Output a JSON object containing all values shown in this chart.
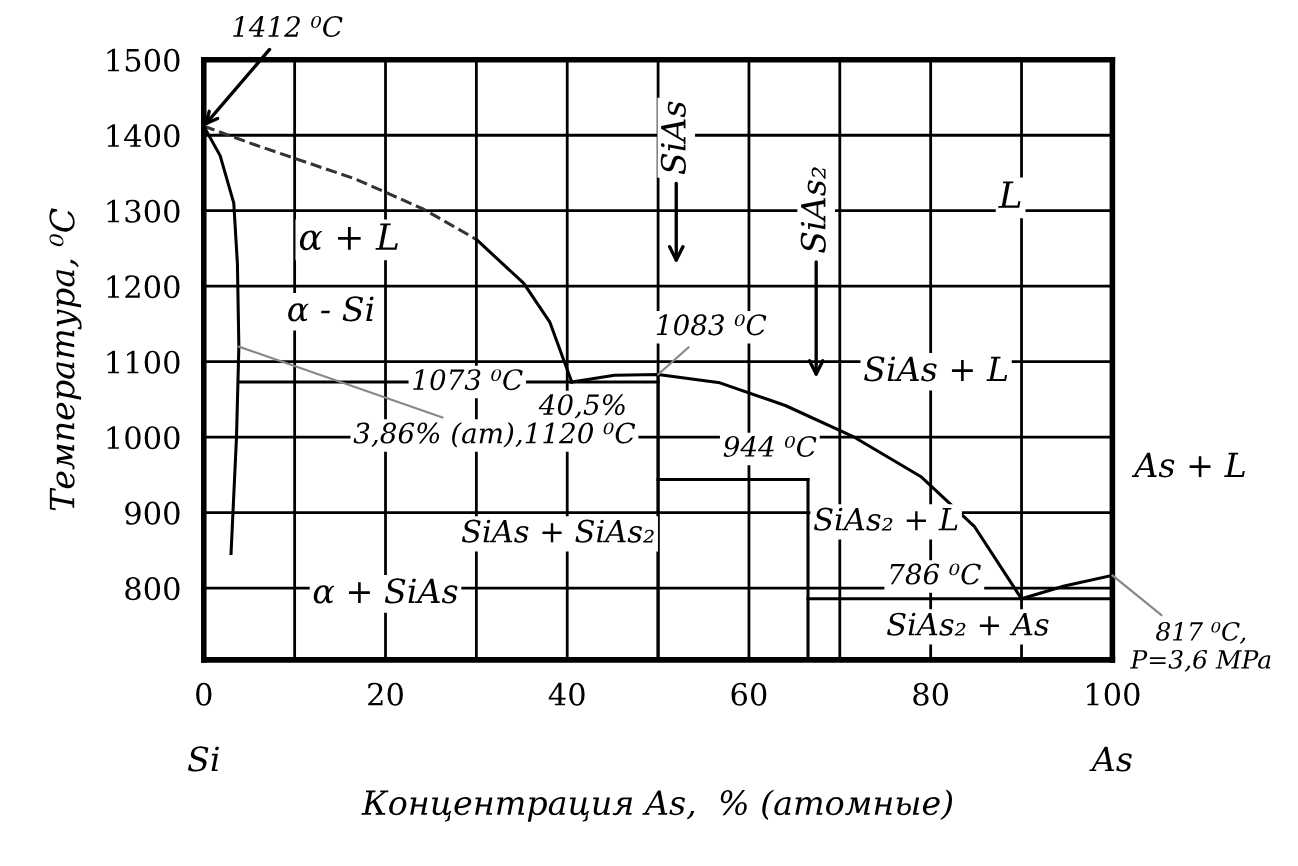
{
  "chart_data": {
    "type": "line",
    "xlabel": "Концентрация As,  % (атомные)",
    "ylabel": "Температура, ⁰C",
    "xlim": [
      0,
      100
    ],
    "ylim": [
      705,
      1500
    ],
    "xticks": [
      0,
      {
        "value": 10,
        "label": null
      },
      20,
      {
        "value": 30,
        "label": null
      },
      40,
      {
        "value": 50,
        "label": null
      },
      60,
      {
        "value": 70,
        "label": null
      },
      80,
      {
        "value": 90,
        "label": null
      },
      100
    ],
    "yticks": [
      800,
      900,
      1000,
      1100,
      1200,
      1300,
      1400,
      1500
    ],
    "grid": true,
    "marker": "none",
    "series": [
      {
        "color": "#333333",
        "line_style": "dashed",
        "x": [
          0,
          5.7,
          16.7,
          24.2,
          30
        ],
        "values": [
          1412,
          1387,
          1342,
          1302,
          1262
        ]
      },
      {
        "color": "#000000",
        "line_style": "solid",
        "x": [
          30,
          35.2,
          38.1,
          40.5
        ],
        "values": [
          1262,
          1204,
          1152,
          1073
        ]
      },
      {
        "color": "#000000",
        "line_style": "solid",
        "x": [
          40.5,
          45.2,
          50,
          56.8,
          64,
          71.6,
          78.9,
          84.8,
          90
        ],
        "values": [
          1073,
          1082,
          1083,
          1072,
          1042,
          1000,
          948,
          882,
          786
        ]
      },
      {
        "color": "#000000",
        "line_style": "solid",
        "x": [
          90,
          94.7,
          100
        ],
        "values": [
          786,
          803,
          817
        ]
      },
      {
        "color": "#000000",
        "line_style": "solid",
        "x": [
          0,
          1.8,
          3.3,
          3.7,
          3.86,
          3.6,
          3.0
        ],
        "values": [
          1412,
          1373,
          1310,
          1230,
          1120,
          1000,
          846
        ]
      },
      {
        "color": "#000000",
        "line_style": "solid",
        "x": [
          3.86,
          50
        ],
        "values": [
          1073,
          1073
        ]
      },
      {
        "color": "#000000",
        "line_style": "solid",
        "x": [
          50,
          50
        ],
        "values": [
          1083,
          705
        ]
      },
      {
        "color": "#000000",
        "line_style": "solid",
        "x": [
          50,
          66.5
        ],
        "values": [
          944,
          944
        ]
      },
      {
        "color": "#000000",
        "line_style": "solid",
        "x": [
          66.5,
          66.5
        ],
        "values": [
          944,
          705
        ]
      },
      {
        "color": "#000000",
        "line_style": "solid",
        "x": [
          66.5,
          100
        ],
        "values": [
          786,
          786
        ]
      }
    ],
    "annotations": [
      {
        "text": "1412 ⁰C",
        "x": 0,
        "y": 1412
      },
      "α + L",
      "α - Si",
      {
        "text": "1073 ⁰C",
        "x": 29,
        "y": 1073
      },
      {
        "text": "40,5%",
        "x": 40.5,
        "y": 1073
      },
      {
        "text": "3,86% (am),1120 ⁰C",
        "x": 3.86,
        "y": 1120
      },
      "SiAs + SiAs₂",
      "α + SiAs",
      "SiAs",
      "SiAs₂",
      {
        "text": "1083 ⁰C",
        "x": 50,
        "y": 1083
      },
      "SiAs + L",
      "L",
      {
        "text": "944 ⁰C",
        "x": 62.3,
        "y": 944
      },
      "SiAs₂ + L",
      {
        "text": "786 ⁰C",
        "x": 80.4,
        "y": 786
      },
      "SiAs₂ + As",
      "As + L",
      {
        "text": "817 ⁰C,\nP=3,6 MPa",
        "x": 100,
        "y": 817
      },
      "Si",
      "As"
    ]
  }
}
